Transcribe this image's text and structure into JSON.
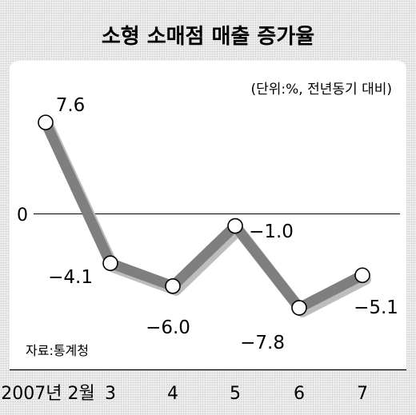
{
  "chart_data": {
    "type": "line",
    "title": "소형 소매점 매출 증가율",
    "unit_note": "(단위:%, 전년동기 대비)",
    "source": "자료:통계청",
    "zero_label": "0",
    "categories": [
      "2007년 2월",
      "3",
      "4",
      "5",
      "6",
      "7"
    ],
    "values": [
      7.6,
      -4.1,
      -6.0,
      -1.0,
      -7.8,
      -5.1
    ],
    "value_labels": [
      "7.6",
      "−4.1",
      "−6.0",
      "−1.0",
      "−7.8",
      "−5.1"
    ],
    "grid": false,
    "colors": {
      "line": "#7f7f7f",
      "shadow": "#bdbdbd",
      "background": "#e6e6e6",
      "marker": "#ffffff"
    }
  }
}
